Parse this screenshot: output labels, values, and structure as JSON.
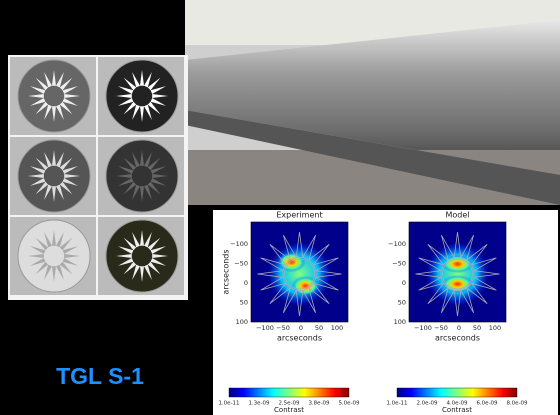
{
  "caption": "TGL S-1",
  "figure": {
    "panels": [
      {
        "title": "Experiment",
        "y_label": "arcseconds",
        "x_label": "arcseconds",
        "yticks": [
          "−100",
          "−50",
          "0",
          "50",
          "100"
        ],
        "xticks": [
          "−100",
          "−50",
          "0",
          "50",
          "100"
        ],
        "colorbar_ticks": [
          "1.0e-11",
          "1.3e-09",
          "2.5e-09",
          "3.8e-09",
          "5.0e-09"
        ],
        "colorbar_label": "Contrast"
      },
      {
        "title": "Model",
        "x_label": "arcseconds",
        "yticks": [
          "−100",
          "−50",
          "0",
          "50",
          "100"
        ],
        "xticks": [
          "−100",
          "−50",
          "0",
          "50",
          "100"
        ],
        "colorbar_ticks": [
          "1.0e-11",
          "2.0e-09",
          "4.0e-09",
          "6.0e-09",
          "8.0e-09"
        ],
        "colorbar_label": "Contrast"
      }
    ]
  }
}
